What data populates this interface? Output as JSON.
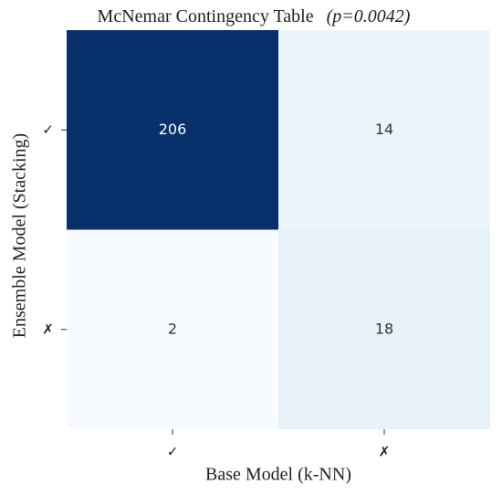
{
  "chart_data": {
    "type": "heatmap",
    "title": "McNemar Contingency Table",
    "annotation": "(p=0.0042)",
    "xlabel": "Base Model (k-NN)",
    "ylabel": "Ensemble Model (Stacking)",
    "x_categories": [
      "✓",
      "✗"
    ],
    "y_categories": [
      "✓",
      "✗"
    ],
    "values": [
      [
        206,
        14
      ],
      [
        2,
        18
      ]
    ],
    "colors": [
      "#f7fbff",
      "#deebf7",
      "#c6dbef",
      "#9ecae1",
      "#6baed6",
      "#4292c6",
      "#2171b5",
      "#08519c",
      "#08306b"
    ]
  }
}
